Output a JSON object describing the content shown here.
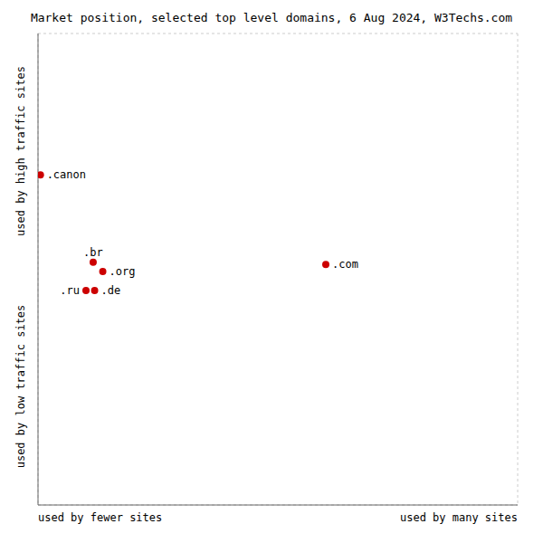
{
  "chart_data": {
    "type": "scatter",
    "title": "Market position, selected top level domains, 6 Aug 2024, W3Techs.com",
    "xlabel_left": "used by fewer sites",
    "xlabel_right": "used by many sites",
    "ylabel_top": "used by high traffic sites",
    "ylabel_bottom": "used by low traffic sites",
    "labels": [
      ".canon",
      ".br",
      ".org",
      ".ru",
      ".de",
      ".com"
    ],
    "x": [
      0.005,
      0.115,
      0.135,
      0.1,
      0.118,
      0.6
    ],
    "values": [
      0.7,
      0.515,
      0.495,
      0.455,
      0.455,
      0.51
    ],
    "color": "#cc0000",
    "xlim": [
      0,
      1
    ],
    "ylim": [
      0,
      1
    ],
    "xticks": [
      0,
      0.1,
      0.2,
      0.3,
      0.4,
      0.5,
      0.6,
      0.7,
      0.8,
      0.9,
      1
    ],
    "yticks": [
      0,
      0.1,
      0.2,
      0.3,
      0.4,
      0.5,
      0.6,
      0.7,
      0.8,
      0.9,
      1
    ],
    "grid": true,
    "tick_labels": false
  }
}
